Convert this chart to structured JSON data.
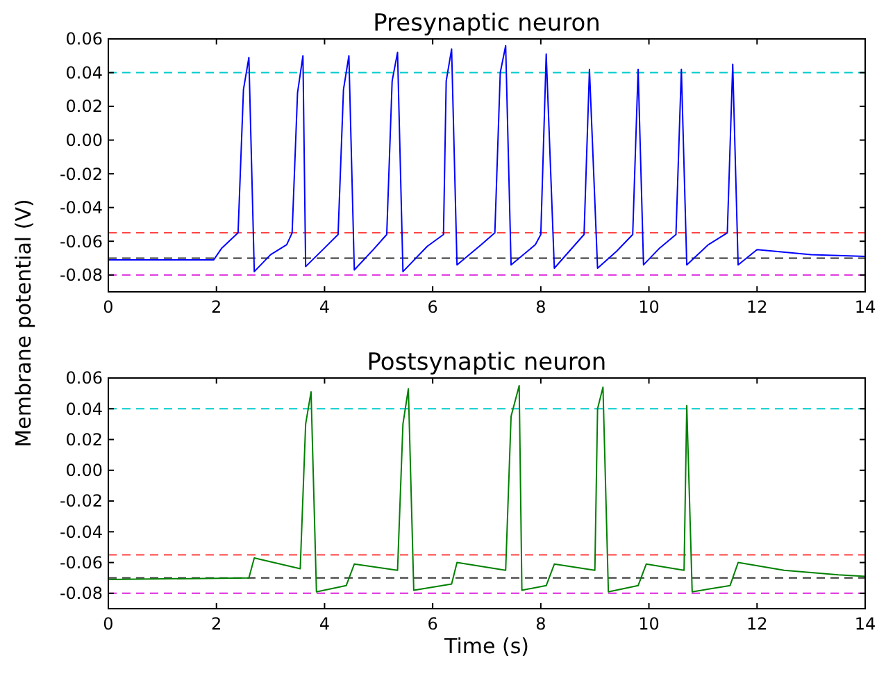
{
  "chart_data": [
    {
      "type": "line",
      "title": "Presynaptic neuron",
      "ylabel": "Membrane potential (V)",
      "xlim": [
        0,
        14
      ],
      "ylim": [
        -0.09,
        0.06
      ],
      "xticks": [
        0,
        2,
        4,
        6,
        8,
        10,
        12,
        14
      ],
      "yticks": [
        {
          "value": 0.06,
          "label": "0.06"
        },
        {
          "value": 0.04,
          "label": "0.04"
        },
        {
          "value": 0.02,
          "label": "0.02"
        },
        {
          "value": 0,
          "label": "0.00"
        },
        {
          "value": -0.02,
          "label": "-0.02"
        },
        {
          "value": -0.04,
          "label": "-0.04"
        },
        {
          "value": -0.06,
          "label": "-0.06"
        },
        {
          "value": -0.08,
          "label": "-0.08"
        }
      ],
      "grid": false,
      "series": [
        {
          "color": "#0000ff",
          "x": [
            0,
            1.95,
            2.1,
            2.4,
            2.5,
            2.6,
            2.7,
            3.0,
            3.3,
            3.4,
            3.5,
            3.6,
            3.65,
            4.0,
            4.25,
            4.35,
            4.45,
            4.55,
            4.9,
            5.15,
            5.25,
            5.35,
            5.45,
            5.9,
            6.2,
            6.25,
            6.35,
            6.45,
            6.9,
            7.15,
            7.25,
            7.35,
            7.45,
            7.9,
            8.0,
            8.1,
            8.25,
            8.8,
            8.9,
            9.05,
            9.4,
            9.7,
            9.8,
            9.9,
            10.2,
            10.5,
            10.6,
            10.7,
            11.1,
            11.45,
            11.55,
            11.65,
            12.0,
            13.0,
            14.0
          ],
          "values": [
            -0.071,
            -0.071,
            -0.064,
            -0.055,
            0.03,
            0.049,
            -0.078,
            -0.068,
            -0.062,
            -0.055,
            0.028,
            0.05,
            -0.075,
            -0.064,
            -0.056,
            0.03,
            0.05,
            -0.077,
            -0.065,
            -0.056,
            0.035,
            0.052,
            -0.078,
            -0.063,
            -0.056,
            0.035,
            0.054,
            -0.074,
            -0.062,
            -0.055,
            0.04,
            0.056,
            -0.074,
            -0.062,
            -0.056,
            0.051,
            -0.076,
            -0.056,
            0.042,
            -0.076,
            -0.066,
            -0.056,
            0.042,
            -0.074,
            -0.064,
            -0.056,
            0.042,
            -0.074,
            -0.062,
            -0.055,
            0.045,
            -0.074,
            -0.065,
            -0.068,
            -0.069
          ]
        }
      ],
      "ref_lines": [
        {
          "axis": "y",
          "value": 0.04,
          "color": "#00cccc",
          "line_style": "dashed"
        },
        {
          "axis": "y",
          "value": -0.055,
          "color": "#ff4444",
          "line_style": "dashed"
        },
        {
          "axis": "y",
          "value": -0.07,
          "color": "#333333",
          "line_style": "dashed"
        },
        {
          "axis": "y",
          "value": -0.08,
          "color": "#dd22dd",
          "line_style": "dashed"
        }
      ]
    },
    {
      "type": "line",
      "title": "Postsynaptic neuron",
      "xlabel": "Time (s)",
      "xlim": [
        0,
        14
      ],
      "ylim": [
        -0.09,
        0.06
      ],
      "xticks": [
        0,
        2,
        4,
        6,
        8,
        10,
        12,
        14
      ],
      "yticks": [
        {
          "value": 0.06,
          "label": "0.06"
        },
        {
          "value": 0.04,
          "label": "0.04"
        },
        {
          "value": 0.02,
          "label": "0.02"
        },
        {
          "value": 0,
          "label": "0.00"
        },
        {
          "value": -0.02,
          "label": "-0.02"
        },
        {
          "value": -0.04,
          "label": "-0.04"
        },
        {
          "value": -0.06,
          "label": "-0.06"
        },
        {
          "value": -0.08,
          "label": "-0.08"
        }
      ],
      "grid": false,
      "series": [
        {
          "color": "#008000",
          "x": [
            0,
            2.6,
            2.7,
            3.55,
            3.65,
            3.75,
            3.85,
            4.4,
            4.55,
            5.35,
            5.45,
            5.55,
            5.65,
            6.35,
            6.45,
            7.35,
            7.45,
            7.6,
            7.65,
            8.1,
            8.25,
            9.0,
            9.05,
            9.15,
            9.25,
            9.8,
            9.95,
            10.65,
            10.7,
            10.8,
            11.5,
            11.65,
            12.5,
            13.5,
            14.0
          ],
          "values": [
            -0.071,
            -0.07,
            -0.057,
            -0.064,
            0.03,
            0.051,
            -0.079,
            -0.075,
            -0.061,
            -0.065,
            0.03,
            0.053,
            -0.078,
            -0.074,
            -0.06,
            -0.065,
            0.035,
            0.055,
            -0.078,
            -0.075,
            -0.061,
            -0.065,
            0.04,
            0.054,
            -0.079,
            -0.075,
            -0.061,
            -0.065,
            0.042,
            -0.079,
            -0.075,
            -0.06,
            -0.065,
            -0.068,
            -0.069
          ]
        }
      ],
      "ref_lines": [
        {
          "axis": "y",
          "value": 0.04,
          "color": "#00cccc",
          "line_style": "dashed"
        },
        {
          "axis": "y",
          "value": -0.055,
          "color": "#ff4444",
          "line_style": "dashed"
        },
        {
          "axis": "y",
          "value": -0.07,
          "color": "#333333",
          "line_style": "dashed"
        },
        {
          "axis": "y",
          "value": -0.08,
          "color": "#dd22dd",
          "line_style": "dashed"
        }
      ]
    }
  ]
}
